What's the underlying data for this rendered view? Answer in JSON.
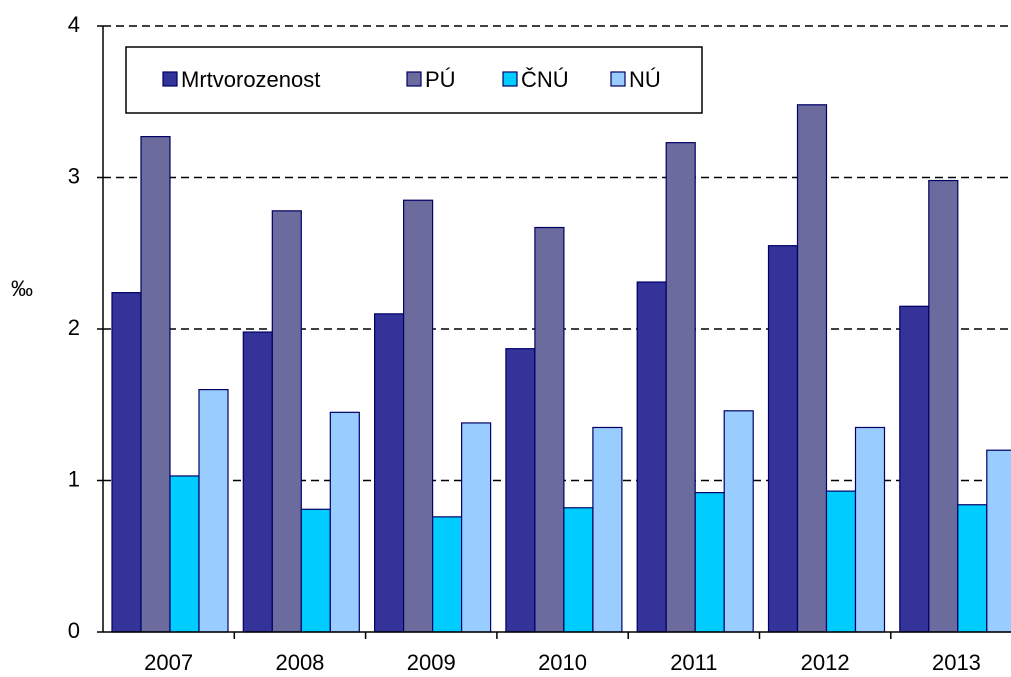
{
  "chart_data": {
    "type": "bar",
    "ylabel": "‰",
    "categories": [
      "2007",
      "2008",
      "2009",
      "2010",
      "2011",
      "2012",
      "2013"
    ],
    "series": [
      {
        "name": "Mrtvorozenost",
        "color": "#333399",
        "values": [
          2.24,
          1.98,
          2.1,
          1.87,
          2.31,
          2.55,
          2.15
        ]
      },
      {
        "name": "PÚ",
        "color": "#6b6b9e",
        "values": [
          3.27,
          2.78,
          2.85,
          2.67,
          3.23,
          3.48,
          2.98
        ]
      },
      {
        "name": "ČNÚ",
        "color": "#00ccff",
        "values": [
          1.03,
          0.81,
          0.76,
          0.82,
          0.92,
          0.93,
          0.84
        ]
      },
      {
        "name": "NÚ",
        "color": "#99ccff",
        "values": [
          1.6,
          1.45,
          1.38,
          1.35,
          1.46,
          1.35,
          1.2
        ]
      }
    ],
    "ylim": [
      0,
      4
    ],
    "yticks": [
      0,
      1,
      2,
      3,
      4
    ],
    "grid": true,
    "legend": "top-left"
  }
}
